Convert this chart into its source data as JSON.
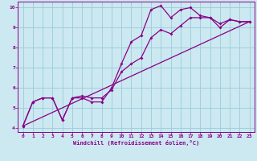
{
  "xlabel": "Windchill (Refroidissement éolien,°C)",
  "bg_color": "#cce8f0",
  "line_color": "#880088",
  "grid_color": "#99ccdd",
  "xlim": [
    -0.5,
    23.5
  ],
  "ylim": [
    3.8,
    10.3
  ],
  "xticks": [
    0,
    1,
    2,
    3,
    4,
    5,
    6,
    7,
    8,
    9,
    10,
    11,
    12,
    13,
    14,
    15,
    16,
    17,
    18,
    19,
    20,
    21,
    22,
    23
  ],
  "yticks": [
    4,
    5,
    6,
    7,
    8,
    9,
    10
  ],
  "line1_x": [
    0,
    1,
    2,
    3,
    4,
    5,
    6,
    7,
    8,
    9,
    10,
    11,
    12,
    13,
    14,
    15,
    16,
    17,
    18,
    19,
    20,
    21,
    22,
    23
  ],
  "line1_y": [
    4.1,
    5.3,
    5.5,
    5.5,
    4.4,
    5.5,
    5.5,
    5.3,
    5.3,
    6.0,
    7.2,
    8.3,
    8.6,
    9.9,
    10.1,
    9.5,
    9.9,
    10.0,
    9.6,
    9.5,
    9.0,
    9.4,
    9.3,
    9.3
  ],
  "line2_x": [
    0,
    1,
    2,
    3,
    4,
    5,
    6,
    7,
    8,
    9,
    10,
    11,
    12,
    13,
    14,
    15,
    16,
    17,
    18,
    19,
    20,
    21,
    22,
    23
  ],
  "line2_y": [
    4.1,
    5.3,
    5.5,
    5.5,
    4.4,
    5.5,
    5.6,
    5.5,
    5.5,
    5.9,
    6.8,
    7.2,
    7.5,
    8.5,
    8.9,
    8.7,
    9.1,
    9.5,
    9.5,
    9.5,
    9.2,
    9.4,
    9.3,
    9.3
  ],
  "line3_x": [
    0,
    23
  ],
  "line3_y": [
    4.1,
    9.3
  ]
}
